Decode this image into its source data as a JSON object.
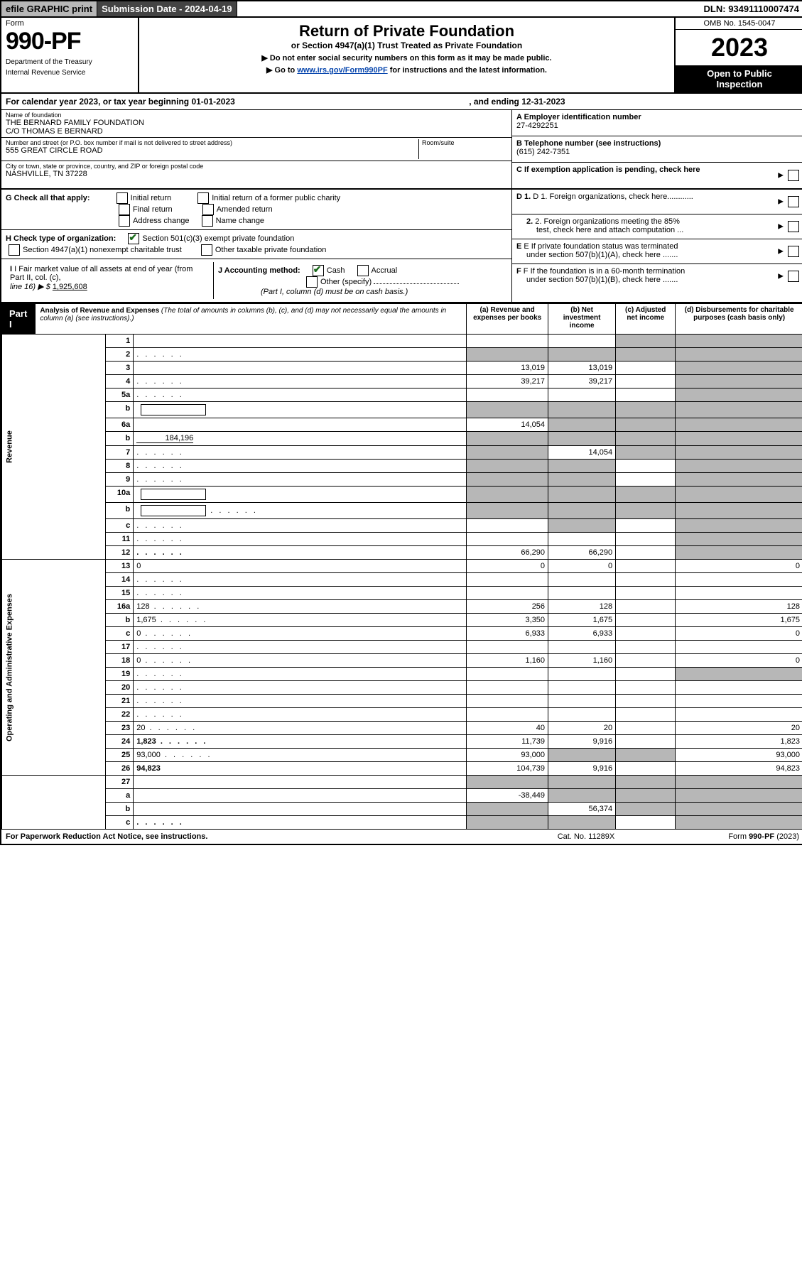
{
  "topbar": {
    "efile": "efile GRAPHIC print",
    "submission": "Submission Date - 2024-04-19",
    "dln": "DLN: 93491110007474"
  },
  "header": {
    "form_word": "Form",
    "form_num": "990-PF",
    "dept1": "Department of the Treasury",
    "dept2": "Internal Revenue Service",
    "title": "Return of Private Foundation",
    "subtitle": "or Section 4947(a)(1) Trust Treated as Private Foundation",
    "note1": "▶ Do not enter social security numbers on this form as it may be made public.",
    "note2_pre": "▶ Go to ",
    "note2_link": "www.irs.gov/Form990PF",
    "note2_post": " for instructions and the latest information.",
    "omb": "OMB No. 1545-0047",
    "year": "2023",
    "open1": "Open to Public",
    "open2": "Inspection"
  },
  "calyear": {
    "left": "For calendar year 2023, or tax year beginning 01-01-2023",
    "right": ", and ending 12-31-2023"
  },
  "entity": {
    "name_lab": "Name of foundation",
    "name_val1": "THE BERNARD FAMILY FOUNDATION",
    "name_val2": "C/O THOMAS E BERNARD",
    "addr_lab": "Number and street (or P.O. box number if mail is not delivered to street address)",
    "addr_val": "555 GREAT CIRCLE ROAD",
    "room_lab": "Room/suite",
    "city_lab": "City or town, state or province, country, and ZIP or foreign postal code",
    "city_val": "NASHVILLE, TN  37228",
    "a_lab": "A Employer identification number",
    "a_val": "27-4292251",
    "b_lab": "B Telephone number (see instructions)",
    "b_val": "(615) 242-7351",
    "c_lab": "C If exemption application is pending, check here"
  },
  "g": {
    "lab": "G Check all that apply:",
    "o1": "Initial return",
    "o2": "Final return",
    "o3": "Address change",
    "o4": "Initial return of a former public charity",
    "o5": "Amended return",
    "o6": "Name change"
  },
  "h": {
    "lab": "H Check type of organization:",
    "o1": "Section 501(c)(3) exempt private foundation",
    "o2": "Section 4947(a)(1) nonexempt charitable trust",
    "o3": "Other taxable private foundation"
  },
  "d": {
    "d1": "D 1. Foreign organizations, check here............",
    "d2a": "2. Foreign organizations meeting the 85%",
    "d2b": "test, check here and attach computation ..."
  },
  "e": {
    "e1": "E  If private foundation status was terminated",
    "e2": "under section 507(b)(1)(A), check here ......."
  },
  "f": {
    "f1": "F  If the foundation is in a 60-month termination",
    "f2": "under section 507(b)(1)(B), check here ......."
  },
  "i": {
    "lab": "I Fair market value of all assets at end of year (from Part II, col. (c),",
    "line": "line 16) ▶ $",
    "val": "1,925,608"
  },
  "j": {
    "lab": "J Accounting method:",
    "cash": "Cash",
    "accrual": "Accrual",
    "other": "Other (specify)",
    "note": "(Part I, column (d) must be on cash basis.)"
  },
  "part1": {
    "num": "Part I",
    "title": "Analysis of Revenue and Expenses",
    "paren": " (The total of amounts in columns (b), (c), and (d) may not necessarily equal the amounts in column (a) (see instructions).)",
    "col_a": "(a)   Revenue and expenses per books",
    "col_b": "(b)   Net investment income",
    "col_c": "(c)   Adjusted net income",
    "col_d": "(d)   Disbursements for charitable purposes (cash basis only)"
  },
  "vlabels": {
    "rev": "Revenue",
    "exp": "Operating and Administrative Expenses"
  },
  "rows": [
    {
      "n": "1",
      "d": "",
      "a": "",
      "b": "",
      "c": "",
      "shade_c": true,
      "shade_d": true
    },
    {
      "n": "2",
      "d": "",
      "a": "",
      "b": "",
      "c": "",
      "shade_a": true,
      "shade_b": true,
      "shade_c": true,
      "shade_d": true,
      "dots": true
    },
    {
      "n": "3",
      "d": "",
      "a": "13,019",
      "b": "13,019",
      "c": "",
      "shade_d": true
    },
    {
      "n": "4",
      "d": "",
      "a": "39,217",
      "b": "39,217",
      "c": "",
      "shade_d": true,
      "dots": true
    },
    {
      "n": "5a",
      "d": "",
      "a": "",
      "b": "",
      "c": "",
      "shade_d": true,
      "dots": true
    },
    {
      "n": "b",
      "d": "",
      "a": "",
      "b": "",
      "c": "",
      "shade_a": true,
      "shade_b": true,
      "shade_c": true,
      "shade_d": true,
      "underbox": true
    },
    {
      "n": "6a",
      "d": "",
      "a": "14,054",
      "b": "",
      "c": "",
      "shade_b": true,
      "shade_c": true,
      "shade_d": true
    },
    {
      "n": "b",
      "d": "",
      "a": "",
      "b": "",
      "c": "",
      "shade_a": true,
      "shade_b": true,
      "shade_c": true,
      "shade_d": true,
      "inline_val": "184,196"
    },
    {
      "n": "7",
      "d": "",
      "a": "",
      "b": "14,054",
      "c": "",
      "shade_a": true,
      "shade_c": true,
      "shade_d": true,
      "dots": true
    },
    {
      "n": "8",
      "d": "",
      "a": "",
      "b": "",
      "c": "",
      "shade_a": true,
      "shade_b": true,
      "shade_d": true,
      "dots": true
    },
    {
      "n": "9",
      "d": "",
      "a": "",
      "b": "",
      "c": "",
      "shade_a": true,
      "shade_b": true,
      "shade_d": true,
      "dots": true
    },
    {
      "n": "10a",
      "d": "",
      "a": "",
      "b": "",
      "c": "",
      "shade_a": true,
      "shade_b": true,
      "shade_c": true,
      "shade_d": true,
      "underbox": true
    },
    {
      "n": "b",
      "d": "",
      "a": "",
      "b": "",
      "c": "",
      "shade_a": true,
      "shade_b": true,
      "shade_c": true,
      "shade_d": true,
      "dots": true,
      "underbox": true
    },
    {
      "n": "c",
      "d": "",
      "a": "",
      "b": "",
      "c": "",
      "shade_b": true,
      "shade_d": true,
      "dots": true
    },
    {
      "n": "11",
      "d": "",
      "a": "",
      "b": "",
      "c": "",
      "shade_d": true,
      "dots": true
    },
    {
      "n": "12",
      "d": "",
      "a": "66,290",
      "b": "66,290",
      "c": "",
      "shade_d": true,
      "bold": true,
      "dots": true
    }
  ],
  "exp_rows": [
    {
      "n": "13",
      "d": "0",
      "a": "0",
      "b": "0",
      "c": ""
    },
    {
      "n": "14",
      "d": "",
      "a": "",
      "b": "",
      "c": "",
      "dots": true
    },
    {
      "n": "15",
      "d": "",
      "a": "",
      "b": "",
      "c": "",
      "dots": true
    },
    {
      "n": "16a",
      "d": "128",
      "a": "256",
      "b": "128",
      "c": "",
      "dots": true
    },
    {
      "n": "b",
      "d": "1,675",
      "a": "3,350",
      "b": "1,675",
      "c": "",
      "dots": true
    },
    {
      "n": "c",
      "d": "0",
      "a": "6,933",
      "b": "6,933",
      "c": "",
      "dots": true
    },
    {
      "n": "17",
      "d": "",
      "a": "",
      "b": "",
      "c": "",
      "dots": true
    },
    {
      "n": "18",
      "d": "0",
      "a": "1,160",
      "b": "1,160",
      "c": "",
      "dots": true
    },
    {
      "n": "19",
      "d": "",
      "a": "",
      "b": "",
      "c": "",
      "shade_d": true,
      "dots": true
    },
    {
      "n": "20",
      "d": "",
      "a": "",
      "b": "",
      "c": "",
      "dots": true
    },
    {
      "n": "21",
      "d": "",
      "a": "",
      "b": "",
      "c": "",
      "dots": true
    },
    {
      "n": "22",
      "d": "",
      "a": "",
      "b": "",
      "c": "",
      "dots": true
    },
    {
      "n": "23",
      "d": "20",
      "a": "40",
      "b": "20",
      "c": "",
      "dots": true
    },
    {
      "n": "24",
      "d": "1,823",
      "a": "11,739",
      "b": "9,916",
      "c": "",
      "bold": true,
      "dots": true
    },
    {
      "n": "25",
      "d": "93,000",
      "a": "93,000",
      "b": "",
      "c": "",
      "shade_b": true,
      "shade_c": true,
      "dots": true
    },
    {
      "n": "26",
      "d": "94,823",
      "a": "104,739",
      "b": "9,916",
      "c": "",
      "bold": true
    }
  ],
  "bottom_rows": [
    {
      "n": "27",
      "d": "",
      "a": "",
      "b": "",
      "c": "",
      "shade_a": true,
      "shade_b": true,
      "shade_c": true,
      "shade_d": true
    },
    {
      "n": "a",
      "d": "",
      "a": "-38,449",
      "b": "",
      "c": "",
      "shade_b": true,
      "shade_c": true,
      "shade_d": true,
      "bold": true
    },
    {
      "n": "b",
      "d": "",
      "a": "",
      "b": "56,374",
      "c": "",
      "shade_a": true,
      "shade_c": true,
      "shade_d": true,
      "bold": true
    },
    {
      "n": "c",
      "d": "",
      "a": "",
      "b": "",
      "c": "",
      "shade_a": true,
      "shade_b": true,
      "shade_d": true,
      "bold": true,
      "dots": true
    }
  ],
  "footer": {
    "f1": "For Paperwork Reduction Act Notice, see instructions.",
    "f2": "Cat. No. 11289X",
    "f3": "Form 990-PF (2023)"
  },
  "colors": {
    "shade": "#b7b7b7",
    "link": "#0645ad",
    "check": "#1a6b1a"
  }
}
